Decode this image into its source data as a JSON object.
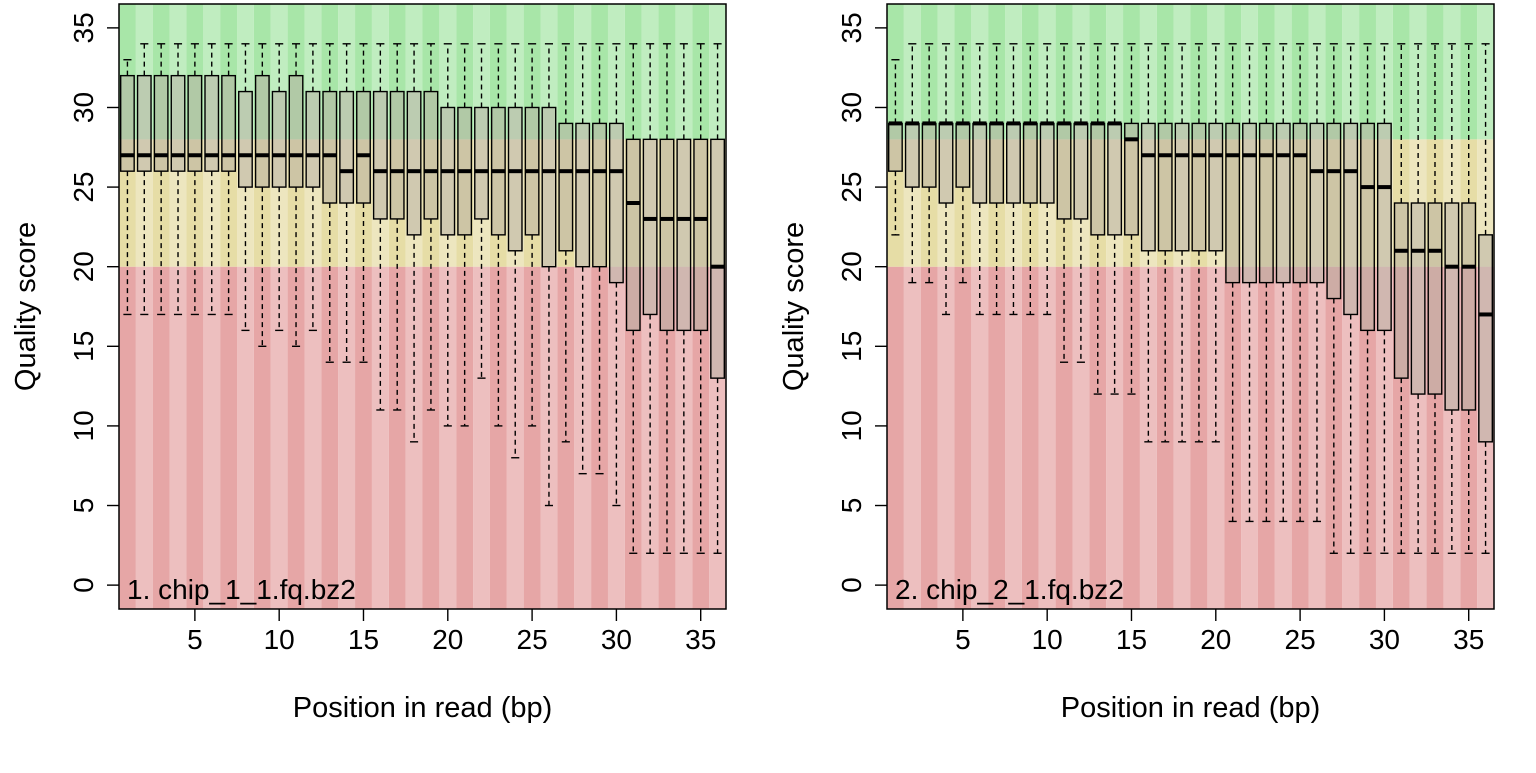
{
  "colors": {
    "good": "#A8E6A8",
    "medium": "#E6DDA6",
    "poor": "#E6A6A6",
    "box_fill": "#B8B0A4",
    "stroke": "#000000"
  },
  "thresholds": {
    "poor_max": 20,
    "medium_max": 28
  },
  "chart_data": [
    {
      "type": "boxplot",
      "panel_label": "1. chip_1_1.fq.bz2",
      "xlabel": "Position in read (bp)",
      "ylabel": "Quality score",
      "xlim": [
        0.5,
        36.5
      ],
      "ylim": [
        -1.5,
        36.5
      ],
      "xticks": [
        5,
        10,
        15,
        20,
        25,
        30,
        35
      ],
      "yticks": [
        0,
        5,
        10,
        15,
        20,
        25,
        30,
        35
      ],
      "positions": [
        1,
        2,
        3,
        4,
        5,
        6,
        7,
        8,
        9,
        10,
        11,
        12,
        13,
        14,
        15,
        16,
        17,
        18,
        19,
        20,
        21,
        22,
        23,
        24,
        25,
        26,
        27,
        28,
        29,
        30,
        31,
        32,
        33,
        34,
        35,
        36
      ],
      "q1": [
        26,
        26,
        26,
        26,
        26,
        26,
        26,
        25,
        25,
        25,
        25,
        25,
        24,
        24,
        24,
        23,
        23,
        22,
        23,
        22,
        22,
        23,
        22,
        21,
        22,
        20,
        21,
        20,
        20,
        19,
        16,
        17,
        16,
        16,
        16,
        13
      ],
      "median": [
        27,
        27,
        27,
        27,
        27,
        27,
        27,
        27,
        27,
        27,
        27,
        27,
        27,
        26,
        27,
        26,
        26,
        26,
        26,
        26,
        26,
        26,
        26,
        26,
        26,
        26,
        26,
        26,
        26,
        26,
        24,
        23,
        23,
        23,
        23,
        20
      ],
      "q3": [
        32,
        32,
        32,
        32,
        32,
        32,
        32,
        31,
        32,
        31,
        32,
        31,
        31,
        31,
        31,
        31,
        31,
        31,
        31,
        30,
        30,
        30,
        30,
        30,
        30,
        30,
        29,
        29,
        29,
        29,
        28,
        28,
        28,
        28,
        28,
        28
      ],
      "whisker_low": [
        17,
        17,
        17,
        17,
        17,
        17,
        17,
        16,
        15,
        16,
        15,
        16,
        14,
        14,
        14,
        11,
        11,
        9,
        11,
        10,
        10,
        13,
        10,
        8,
        10,
        5,
        9,
        7,
        7,
        5,
        2,
        2,
        2,
        2,
        2,
        2
      ],
      "whisker_high": [
        33,
        34,
        34,
        34,
        34,
        34,
        34,
        34,
        34,
        34,
        34,
        34,
        34,
        34,
        34,
        34,
        34,
        34,
        34,
        34,
        34,
        34,
        34,
        34,
        34,
        34,
        34,
        34,
        34,
        34,
        34,
        34,
        34,
        34,
        34,
        34
      ]
    },
    {
      "type": "boxplot",
      "panel_label": "2. chip_2_1.fq.bz2",
      "xlabel": "Position in read (bp)",
      "ylabel": "Quality score",
      "xlim": [
        0.5,
        36.5
      ],
      "ylim": [
        -1.5,
        36.5
      ],
      "xticks": [
        5,
        10,
        15,
        20,
        25,
        30,
        35
      ],
      "yticks": [
        0,
        5,
        10,
        15,
        20,
        25,
        30,
        35
      ],
      "positions": [
        1,
        2,
        3,
        4,
        5,
        6,
        7,
        8,
        9,
        10,
        11,
        12,
        13,
        14,
        15,
        16,
        17,
        18,
        19,
        20,
        21,
        22,
        23,
        24,
        25,
        26,
        27,
        28,
        29,
        30,
        31,
        32,
        33,
        34,
        35,
        36
      ],
      "q1": [
        26,
        25,
        25,
        24,
        25,
        24,
        24,
        24,
        24,
        24,
        23,
        23,
        22,
        22,
        22,
        21,
        21,
        21,
        21,
        21,
        19,
        19,
        19,
        19,
        19,
        19,
        18,
        17,
        16,
        16,
        13,
        12,
        12,
        11,
        11,
        9
      ],
      "median": [
        29,
        29,
        29,
        29,
        29,
        29,
        29,
        29,
        29,
        29,
        29,
        29,
        29,
        29,
        28,
        27,
        27,
        27,
        27,
        27,
        27,
        27,
        27,
        27,
        27,
        26,
        26,
        26,
        25,
        25,
        21,
        21,
        21,
        20,
        20,
        17
      ],
      "q3": [
        29,
        29,
        29,
        29,
        29,
        29,
        29,
        29,
        29,
        29,
        29,
        29,
        29,
        29,
        29,
        29,
        29,
        29,
        29,
        29,
        29,
        29,
        29,
        29,
        29,
        29,
        29,
        29,
        29,
        29,
        24,
        24,
        24,
        24,
        24,
        22
      ],
      "whisker_low": [
        22,
        19,
        19,
        17,
        19,
        17,
        17,
        17,
        17,
        17,
        14,
        14,
        12,
        12,
        12,
        9,
        9,
        9,
        9,
        9,
        4,
        4,
        4,
        4,
        4,
        4,
        2,
        2,
        2,
        2,
        2,
        2,
        2,
        2,
        2,
        2
      ],
      "whisker_high": [
        33,
        34,
        34,
        34,
        34,
        34,
        34,
        34,
        34,
        34,
        34,
        34,
        34,
        34,
        34,
        34,
        34,
        34,
        34,
        34,
        34,
        34,
        34,
        34,
        34,
        34,
        34,
        34,
        34,
        34,
        34,
        34,
        34,
        34,
        34,
        34
      ]
    }
  ]
}
